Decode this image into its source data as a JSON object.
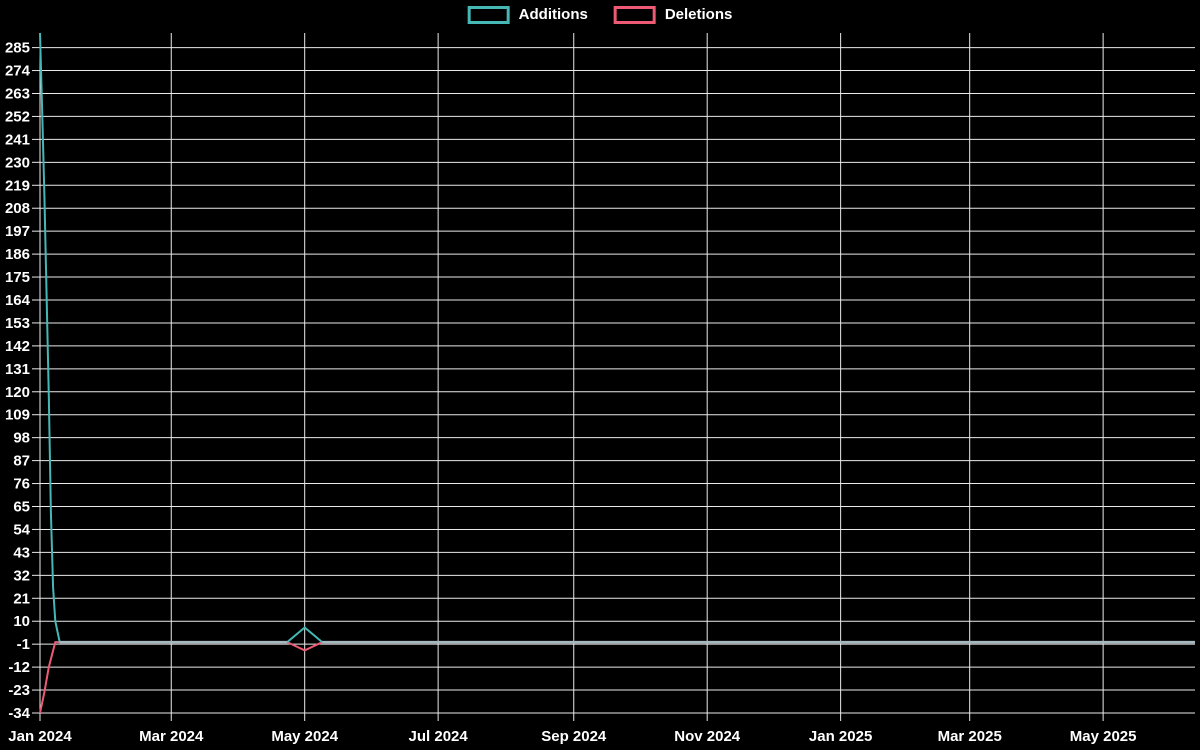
{
  "colors": {
    "background": "#000000",
    "grid": "#eaeaea",
    "text": "#ffffff",
    "overlap": "#a6b9c1"
  },
  "chart_data": {
    "type": "line",
    "title": "",
    "legend_position": "top-center",
    "grid": true,
    "x_type": "time",
    "x_domain": [
      "2024-01-01",
      "2025-06-12"
    ],
    "y_domain": [
      -34,
      292
    ],
    "y_ticks": [
      -34,
      -23,
      -12,
      -1,
      10,
      21,
      32,
      43,
      54,
      65,
      76,
      87,
      98,
      109,
      120,
      131,
      142,
      153,
      164,
      175,
      186,
      197,
      208,
      219,
      230,
      241,
      252,
      263,
      274,
      285
    ],
    "x_ticks": [
      {
        "date": "2024-01-01",
        "label": "Jan 2024"
      },
      {
        "date": "2024-03-01",
        "label": "Mar 2024"
      },
      {
        "date": "2024-05-01",
        "label": "May 2024"
      },
      {
        "date": "2024-07-01",
        "label": "Jul 2024"
      },
      {
        "date": "2024-09-01",
        "label": "Sep 2024"
      },
      {
        "date": "2024-11-01",
        "label": "Nov 2024"
      },
      {
        "date": "2025-01-01",
        "label": "Jan 2025"
      },
      {
        "date": "2025-03-01",
        "label": "Mar 2025"
      },
      {
        "date": "2025-05-01",
        "label": "May 2025"
      }
    ],
    "series": [
      {
        "name": "Additions",
        "color": "#45b8b5",
        "points": [
          [
            "2024-01-01",
            292
          ],
          [
            "2024-01-02",
            254
          ],
          [
            "2024-01-03",
            214
          ],
          [
            "2024-01-04",
            166
          ],
          [
            "2024-01-05",
            118
          ],
          [
            "2024-01-06",
            62
          ],
          [
            "2024-01-07",
            26
          ],
          [
            "2024-01-08",
            10
          ],
          [
            "2024-01-10",
            0
          ],
          [
            "2024-04-23",
            0
          ],
          [
            "2024-05-01",
            7
          ],
          [
            "2024-05-09",
            0
          ],
          [
            "2025-06-12",
            0
          ]
        ]
      },
      {
        "name": "Deletions",
        "color": "#ee5a74",
        "points": [
          [
            "2024-01-01",
            -34
          ],
          [
            "2024-01-02",
            -29
          ],
          [
            "2024-01-03",
            -24
          ],
          [
            "2024-01-05",
            -12
          ],
          [
            "2024-01-08",
            0
          ],
          [
            "2024-04-23",
            0
          ],
          [
            "2024-05-01",
            -4
          ],
          [
            "2024-05-09",
            0
          ],
          [
            "2025-06-12",
            0
          ]
        ]
      }
    ]
  }
}
